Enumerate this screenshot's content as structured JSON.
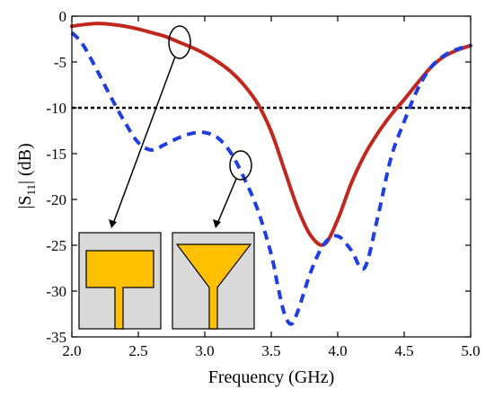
{
  "chart_data": {
    "type": "line",
    "xlabel": "Frequency (GHz)",
    "ylabel_main": "|S",
    "ylabel_sub": "11",
    "ylabel_tail": "| (dB)",
    "xlim": [
      2.0,
      5.0
    ],
    "ylim": [
      -35,
      0
    ],
    "xticks": [
      2.0,
      2.5,
      3.0,
      3.5,
      4.0,
      4.5,
      5.0
    ],
    "xtick_labels": [
      "2.0",
      "2.5",
      "3.0",
      "3.5",
      "4.0",
      "4.5",
      "5.0"
    ],
    "yticks": [
      0,
      -5,
      -10,
      -15,
      -20,
      -25,
      -30,
      -35
    ],
    "ytick_labels": [
      "0",
      "-5",
      "-10",
      "-15",
      "-20",
      "-25",
      "-30",
      "-35"
    ],
    "grid": false,
    "reference_line": {
      "y": -10,
      "style": "dotted",
      "color": "#000000"
    },
    "series": [
      {
        "style": "solid",
        "color": "#c0281e",
        "x": [
          2.0,
          2.1,
          2.2,
          2.3,
          2.4,
          2.5,
          2.6,
          2.7,
          2.8,
          2.9,
          3.0,
          3.1,
          3.2,
          3.3,
          3.4,
          3.5,
          3.6,
          3.7,
          3.8,
          3.9,
          4.0,
          4.1,
          4.2,
          4.3,
          4.4,
          4.5,
          4.6,
          4.7,
          4.8,
          4.9,
          5.0
        ],
        "y": [
          -1.1,
          -0.9,
          -0.8,
          -0.9,
          -1.1,
          -1.4,
          -1.8,
          -2.2,
          -2.8,
          -3.4,
          -4.1,
          -5.0,
          -6.1,
          -7.6,
          -9.6,
          -12.6,
          -16.8,
          -21.0,
          -24.0,
          -24.9,
          -22.2,
          -18.3,
          -15.2,
          -12.8,
          -10.8,
          -9.1,
          -7.3,
          -5.6,
          -4.4,
          -3.7,
          -3.2
        ]
      },
      {
        "style": "dashed",
        "color": "#1f3ee0",
        "x": [
          2.0,
          2.05,
          2.1,
          2.2,
          2.3,
          2.4,
          2.5,
          2.6,
          2.7,
          2.8,
          2.9,
          3.0,
          3.1,
          3.2,
          3.3,
          3.4,
          3.5,
          3.55,
          3.6,
          3.65,
          3.7,
          3.8,
          3.9,
          4.0,
          4.1,
          4.2,
          4.3,
          4.4,
          4.5,
          4.6,
          4.7,
          4.8,
          4.9,
          5.0
        ],
        "y": [
          -1.8,
          -2.5,
          -3.5,
          -6.2,
          -9.0,
          -11.6,
          -13.8,
          -14.6,
          -14.0,
          -13.3,
          -12.8,
          -12.7,
          -13.3,
          -15.0,
          -17.8,
          -21.2,
          -26.0,
          -29.5,
          -32.5,
          -33.6,
          -32.2,
          -27.8,
          -24.8,
          -24.0,
          -25.5,
          -27.5,
          -22.0,
          -15.5,
          -11.5,
          -8.0,
          -5.6,
          -4.3,
          -3.6,
          -3.2
        ]
      }
    ],
    "annotations": [
      {
        "type": "ellipse-with-arrow",
        "target": "solid",
        "cx": 2.82,
        "cy": -2.2,
        "to": [
          2.32,
          -24.2
        ]
      },
      {
        "type": "ellipse-with-arrow",
        "target": "dashed",
        "cx": 3.28,
        "cy": -17.6,
        "to": [
          3.09,
          -24.2
        ]
      }
    ],
    "insets": [
      {
        "shape": "T-patch",
        "fill": "#ffc000",
        "background": "#d9d9d9"
      },
      {
        "shape": "Y-patch",
        "fill": "#ffc000",
        "background": "#d9d9d9"
      }
    ]
  }
}
